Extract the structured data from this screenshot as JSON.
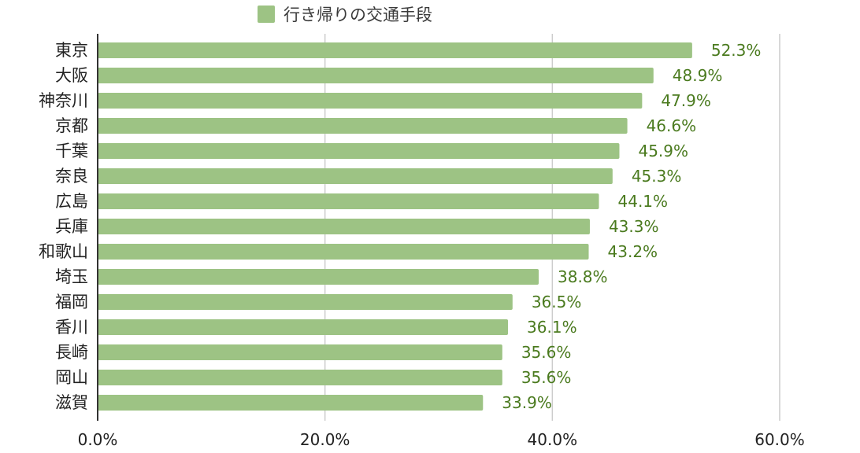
{
  "chart_data": {
    "type": "bar",
    "orientation": "horizontal",
    "title": "",
    "xlabel": "",
    "ylabel": "",
    "legend_position": "top",
    "grid": true,
    "xlim": [
      0,
      60
    ],
    "x_ticks": [
      "0.0%",
      "20.0%",
      "40.0%",
      "60.0%"
    ],
    "categories": [
      "東京",
      "大阪",
      "神奈川",
      "京都",
      "千葉",
      "奈良",
      "広島",
      "兵庫",
      "和歌山",
      "埼玉",
      "福岡",
      "香川",
      "長崎",
      "岡山",
      "滋賀"
    ],
    "series": [
      {
        "name": "行き帰りの交通手段",
        "color": "#9dc384",
        "values": [
          52.3,
          48.9,
          47.9,
          46.6,
          45.9,
          45.3,
          44.1,
          43.3,
          43.2,
          38.8,
          36.5,
          36.1,
          35.6,
          35.6,
          33.9
        ],
        "labels": [
          "52.3%",
          "48.9%",
          "47.9%",
          "46.6%",
          "45.9%",
          "45.3%",
          "44.1%",
          "43.3%",
          "43.2%",
          "38.8%",
          "36.5%",
          "36.1%",
          "35.6%",
          "35.6%",
          "33.9%"
        ]
      }
    ],
    "colors": {
      "bar": "#9dc384",
      "value_label": "#4a7a1e",
      "grid": "#cccccc",
      "axis": "#333333"
    }
  }
}
